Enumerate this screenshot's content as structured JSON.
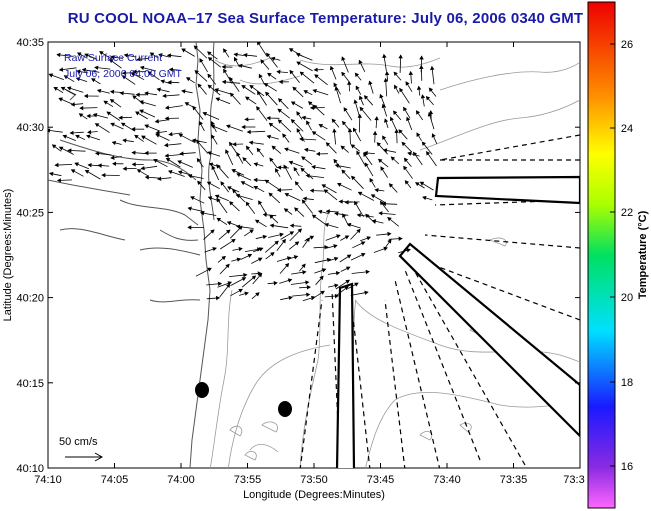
{
  "title": "RU COOL  NOAA–17  Sea Surface Temperature:  July 06, 2006 0340 GMT",
  "annotation": {
    "line1": "Raw Surface Current",
    "line2": "July 06, 2006 04:00 GMT"
  },
  "scale": {
    "label": "50 cm/s"
  },
  "axes": {
    "xlabel": "Longitude (Degrees:Minutes)",
    "ylabel": "Latitude (Degrees:Minutes)",
    "xticks": [
      "74:10",
      "74:05",
      "74:00",
      "73:55",
      "73:50",
      "73:45",
      "73:40",
      "73:35",
      "73:3"
    ],
    "yticks": [
      "40:35",
      "40:30",
      "40:25",
      "40:20",
      "40:15",
      "40:10"
    ]
  },
  "colorbar": {
    "label": "Temperature (°C)",
    "ticks": [
      "26",
      "24",
      "22",
      "20",
      "18",
      "16"
    ]
  },
  "colors": {
    "title": "#1a1aa8",
    "annotation": "#1a1aa8",
    "coast": "#555555",
    "contour": "#9a9a9a",
    "vectors": "#000000"
  },
  "icons": {
    "arrow": "current-vector-arrow",
    "marker": "station-dot"
  }
}
